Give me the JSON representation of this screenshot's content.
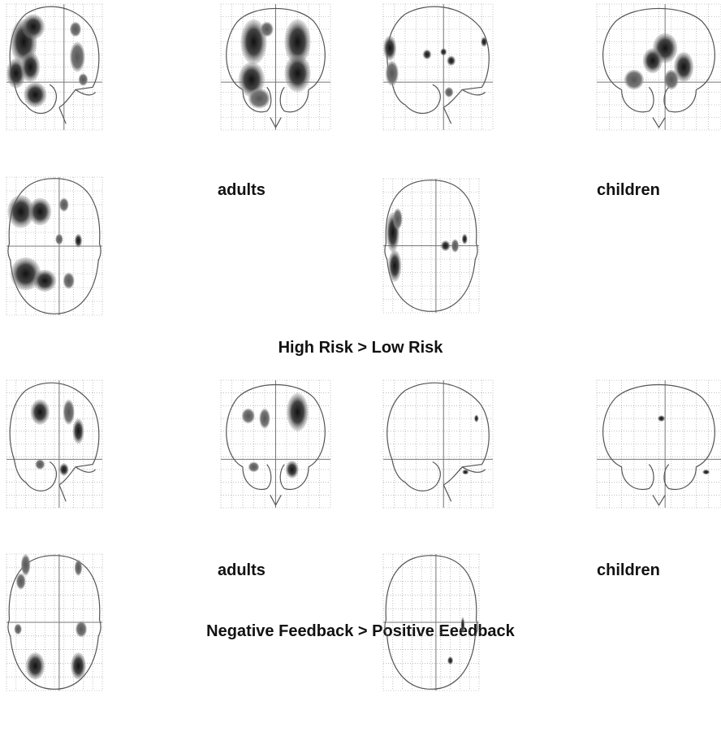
{
  "figure": {
    "sections": [
      {
        "title": "High Risk > Low Risk",
        "groups": [
          {
            "label": "adults"
          },
          {
            "label": "children"
          }
        ]
      },
      {
        "title": "Negative Feedback > Positive Eeedback",
        "groups": [
          {
            "label": "adults"
          },
          {
            "label": "children"
          }
        ]
      }
    ]
  }
}
